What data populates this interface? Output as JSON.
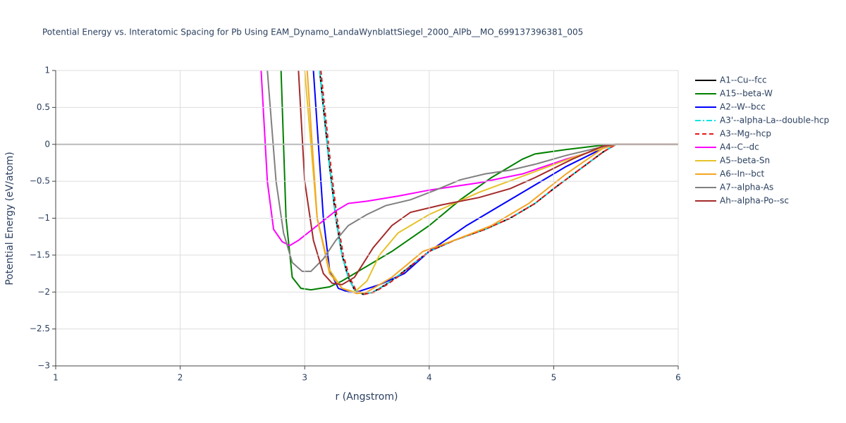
{
  "chart_data": {
    "type": "line",
    "title": "Potential Energy vs. Interatomic Spacing for Pb Using EAM_Dynamo_LandaWynblattSiegel_2000_AlPb__MO_699137396381_005",
    "x_label": "r (Angstrom)",
    "y_label": "Potential Energy (eV/atom)",
    "xlim": [
      1,
      6
    ],
    "ylim": [
      -3,
      1
    ],
    "xticks": [
      1,
      2,
      3,
      4,
      5,
      6
    ],
    "yticks": [
      1,
      0.5,
      0,
      {
        "value": -0.5,
        "label": "−0.5"
      },
      {
        "value": -1,
        "label": "−1"
      },
      {
        "value": -1.5,
        "label": "−1.5"
      },
      {
        "value": -2,
        "label": "−2"
      },
      {
        "value": -2.5,
        "label": "−2.5"
      },
      {
        "value": -3,
        "label": "−3"
      }
    ],
    "grid": true,
    "legend": "right",
    "series": [
      {
        "name": "A1--Cu--fcc",
        "color": "#000000",
        "dash": "solid",
        "x": [
          3.12,
          3.15,
          3.2,
          3.25,
          3.3,
          3.35,
          3.4,
          3.47,
          3.55,
          3.65,
          3.75,
          3.9,
          4.0,
          4.2,
          4.45,
          4.65,
          4.85,
          5.0,
          5.2,
          5.4,
          5.5,
          6
        ],
        "values": [
          1,
          0.5,
          -0.3,
          -1.0,
          -1.5,
          -1.8,
          -1.97,
          -2.03,
          -2.0,
          -1.9,
          -1.78,
          -1.58,
          -1.45,
          -1.3,
          -1.15,
          -1.0,
          -0.8,
          -0.6,
          -0.35,
          -0.1,
          0,
          0
        ]
      },
      {
        "name": "A15--beta-W",
        "color": "#008000",
        "dash": "solid",
        "x": [
          2.81,
          2.85,
          2.9,
          2.97,
          3.05,
          3.2,
          3.3,
          3.45,
          3.7,
          4.0,
          4.25,
          4.5,
          4.75,
          4.85,
          5.1,
          5.4,
          5.5,
          6
        ],
        "values": [
          1,
          -1.0,
          -1.8,
          -1.95,
          -1.97,
          -1.93,
          -1.85,
          -1.7,
          -1.45,
          -1.1,
          -0.75,
          -0.45,
          -0.2,
          -0.13,
          -0.07,
          -0.01,
          0,
          0
        ]
      },
      {
        "name": "A2--W--bcc",
        "color": "#0000ff",
        "dash": "solid",
        "x": [
          3.07,
          3.15,
          3.2,
          3.27,
          3.35,
          3.42,
          3.6,
          3.8,
          4.0,
          4.3,
          4.55,
          4.85,
          5.1,
          5.4,
          5.5,
          6
        ],
        "values": [
          1,
          -1.0,
          -1.7,
          -1.95,
          -2.0,
          -2.0,
          -1.9,
          -1.75,
          -1.45,
          -1.1,
          -0.85,
          -0.55,
          -0.3,
          -0.05,
          0,
          0
        ]
      },
      {
        "name": "A3'--alpha-La--double-hcp",
        "color": "#00e5e5",
        "dash": "dashdot",
        "x": [
          3.12,
          3.15,
          3.2,
          3.25,
          3.3,
          3.35,
          3.4,
          3.47,
          3.55,
          3.65,
          3.75,
          3.9,
          4.0,
          4.2,
          4.45,
          4.65,
          4.85,
          5.0,
          5.2,
          5.4,
          5.5,
          6
        ],
        "values": [
          1,
          0.5,
          -0.3,
          -1.0,
          -1.5,
          -1.8,
          -1.97,
          -2.03,
          -2.0,
          -1.9,
          -1.78,
          -1.58,
          -1.45,
          -1.3,
          -1.15,
          -1.0,
          -0.8,
          -0.6,
          -0.35,
          -0.1,
          0,
          0
        ]
      },
      {
        "name": "A3--Mg--hcp",
        "color": "#e31a1c",
        "dash": "dash",
        "x": [
          3.13,
          3.16,
          3.21,
          3.26,
          3.31,
          3.36,
          3.41,
          3.48,
          3.56,
          3.66,
          3.76,
          3.9,
          4.0,
          4.2,
          4.45,
          4.65,
          4.85,
          5.0,
          5.2,
          5.4,
          5.5,
          6
        ],
        "values": [
          1,
          0.5,
          -0.3,
          -1.0,
          -1.5,
          -1.8,
          -1.97,
          -2.03,
          -2.0,
          -1.9,
          -1.78,
          -1.58,
          -1.45,
          -1.3,
          -1.15,
          -1.0,
          -0.8,
          -0.6,
          -0.35,
          -0.1,
          0,
          0
        ]
      },
      {
        "name": "A4--C--dc",
        "color": "#ff00ff",
        "dash": "solid",
        "x": [
          2.65,
          2.7,
          2.75,
          2.82,
          2.88,
          2.95,
          3.1,
          3.25,
          3.35,
          3.5,
          3.75,
          4.0,
          4.4,
          4.75,
          5.1,
          5.4,
          5.5,
          6
        ],
        "values": [
          1,
          -0.5,
          -1.15,
          -1.32,
          -1.37,
          -1.3,
          -1.1,
          -0.9,
          -0.8,
          -0.77,
          -0.7,
          -0.62,
          -0.52,
          -0.4,
          -0.2,
          -0.05,
          0,
          0
        ]
      },
      {
        "name": "A5--beta-Sn",
        "color": "#e6c229",
        "dash": "solid",
        "x": [
          3.0,
          3.1,
          3.2,
          3.3,
          3.4,
          3.5,
          3.6,
          3.75,
          4.0,
          4.4,
          4.8,
          5.2,
          5.5,
          6
        ],
        "values": [
          1,
          -1.0,
          -1.7,
          -1.95,
          -2.0,
          -1.85,
          -1.5,
          -1.2,
          -0.95,
          -0.65,
          -0.4,
          -0.15,
          0,
          0
        ]
      },
      {
        "name": "A6--In--bct",
        "color": "#f5a623",
        "dash": "solid",
        "x": [
          3.02,
          3.1,
          3.2,
          3.3,
          3.42,
          3.5,
          3.7,
          3.95,
          4.2,
          4.5,
          4.8,
          5.1,
          5.4,
          5.5,
          6
        ],
        "values": [
          1,
          -1.0,
          -1.75,
          -1.95,
          -2.02,
          -2.0,
          -1.8,
          -1.45,
          -1.3,
          -1.1,
          -0.8,
          -0.4,
          -0.05,
          0,
          0
        ]
      },
      {
        "name": "A7--alpha-As",
        "color": "#808080",
        "dash": "solid",
        "x": [
          2.7,
          2.77,
          2.83,
          2.9,
          2.98,
          3.05,
          3.15,
          3.25,
          3.35,
          3.5,
          3.65,
          3.85,
          4.05,
          4.25,
          4.45,
          4.65,
          4.85,
          5.1,
          5.4,
          5.5,
          6
        ],
        "values": [
          1,
          -0.5,
          -1.2,
          -1.6,
          -1.72,
          -1.72,
          -1.55,
          -1.3,
          -1.1,
          -0.95,
          -0.83,
          -0.75,
          -0.62,
          -0.48,
          -0.4,
          -0.35,
          -0.27,
          -0.15,
          -0.03,
          0,
          0
        ]
      },
      {
        "name": "Ah--alpha-Po--sc",
        "color": "#a52a2a",
        "dash": "solid",
        "x": [
          2.95,
          3.0,
          3.07,
          3.15,
          3.22,
          3.3,
          3.4,
          3.55,
          3.7,
          3.85,
          4.1,
          4.4,
          4.65,
          4.85,
          5.15,
          5.4,
          5.5,
          6
        ],
        "values": [
          1,
          -0.5,
          -1.3,
          -1.75,
          -1.88,
          -1.9,
          -1.8,
          -1.4,
          -1.1,
          -0.92,
          -0.82,
          -0.72,
          -0.6,
          -0.45,
          -0.2,
          -0.02,
          0,
          0
        ]
      }
    ]
  }
}
